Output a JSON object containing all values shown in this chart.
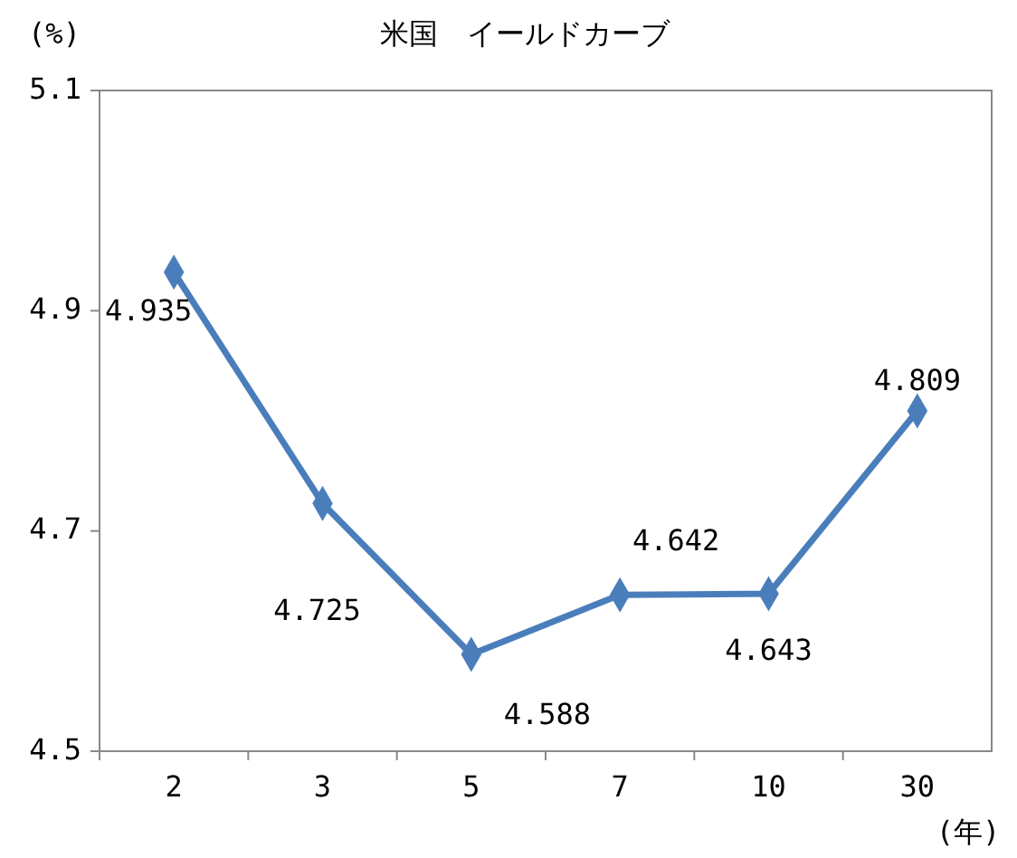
{
  "chart_data": {
    "type": "line",
    "title": "米国　イールドカーブ",
    "ylabel": "(%)",
    "xlabel": "(年)",
    "categories": [
      "2",
      "3",
      "5",
      "7",
      "10",
      "30"
    ],
    "series": [
      {
        "color": "#4a7ebb",
        "values": [
          4.935,
          4.725,
          4.588,
          4.642,
          4.643,
          4.809
        ]
      }
    ],
    "ylim": [
      4.5,
      5.1
    ],
    "yticks": [
      4.5,
      4.7,
      4.9,
      5.1
    ],
    "grid": false,
    "marker": "diamond",
    "line_style": "solid",
    "data_labels": true
  }
}
